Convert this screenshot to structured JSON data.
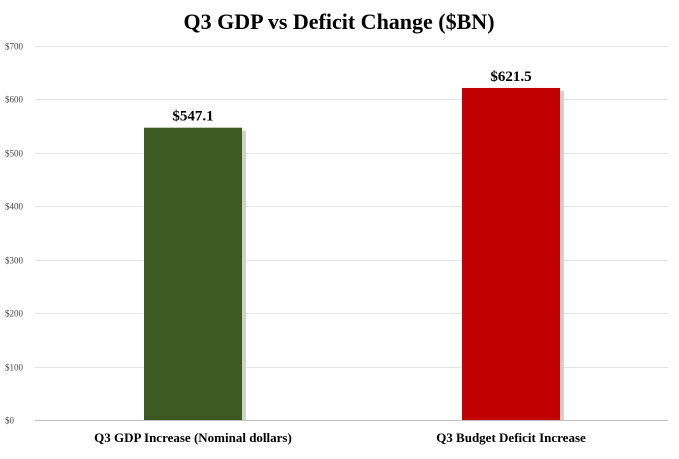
{
  "chart_data": {
    "type": "bar",
    "title": "Q3 GDP vs Deficit Change ($BN)",
    "categories": [
      "Q3 GDP Increase (Nominal dollars)",
      "Q3 Budget Deficit Increase"
    ],
    "values": [
      547.1,
      621.5
    ],
    "data_labels": [
      "$547.1",
      "$621.5"
    ],
    "colors": [
      "#3d5a23",
      "#c00000"
    ],
    "ylim": [
      0,
      700
    ],
    "yticks": [
      0,
      100,
      200,
      300,
      400,
      500,
      600,
      700
    ],
    "ytick_labels": [
      "$0",
      "$100",
      "$200",
      "$300",
      "$400",
      "$500",
      "$600",
      "$700"
    ],
    "grid": true,
    "legend": "none"
  }
}
